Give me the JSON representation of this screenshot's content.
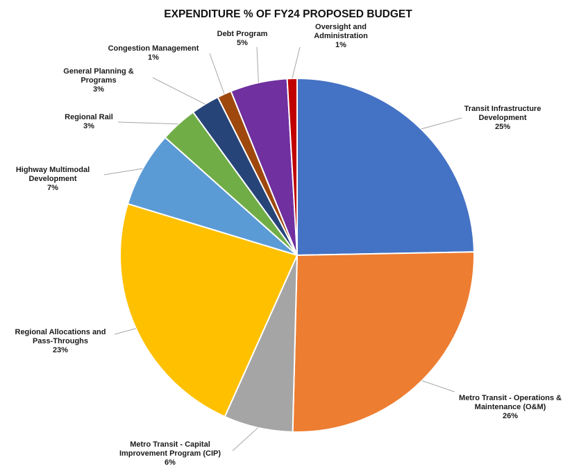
{
  "chart_data": {
    "type": "pie",
    "title": "EXPENDITURE % OF FY24 PROPOSED BUDGET",
    "start": "12 o'clock",
    "direction": "clockwise",
    "slices": [
      {
        "label": [
          "Transit Infrastructure",
          "Development"
        ],
        "value_label": "25%",
        "value": 24.7,
        "color": "#4472C4"
      },
      {
        "label": [
          "Metro Transit - Operations &",
          "Maintenance (O&M)"
        ],
        "value_label": "26%",
        "value": 25.7,
        "color": "#ED7D31"
      },
      {
        "label": [
          "Metro Transit - Capital",
          "Improvement Program (CIP)"
        ],
        "value_label": "6%",
        "value": 6.3,
        "color": "#A5A5A5"
      },
      {
        "label": [
          "Regional Allocations and",
          "Pass-Throughs"
        ],
        "value_label": "23%",
        "value": 23.0,
        "color": "#FFC000"
      },
      {
        "label": [
          "Highway Multimodal",
          "Development"
        ],
        "value_label": "7%",
        "value": 6.9,
        "color": "#5B9BD5"
      },
      {
        "label": [
          "Regional Rail"
        ],
        "value_label": "3%",
        "value": 3.4,
        "color": "#70AD47"
      },
      {
        "label": [
          "General Planning &",
          "Programs"
        ],
        "value_label": "3%",
        "value": 2.6,
        "color": "#264478"
      },
      {
        "label": [
          "Congestion Management"
        ],
        "value_label": "1%",
        "value": 1.3,
        "color": "#9E480E"
      },
      {
        "label": [
          "Debt Program"
        ],
        "value_label": "5%",
        "value": 5.2,
        "color": "#7030A0"
      },
      {
        "label": [
          "Oversight and",
          "Administration"
        ],
        "value_label": "1%",
        "value": 0.9,
        "color": "#C00000"
      }
    ]
  }
}
